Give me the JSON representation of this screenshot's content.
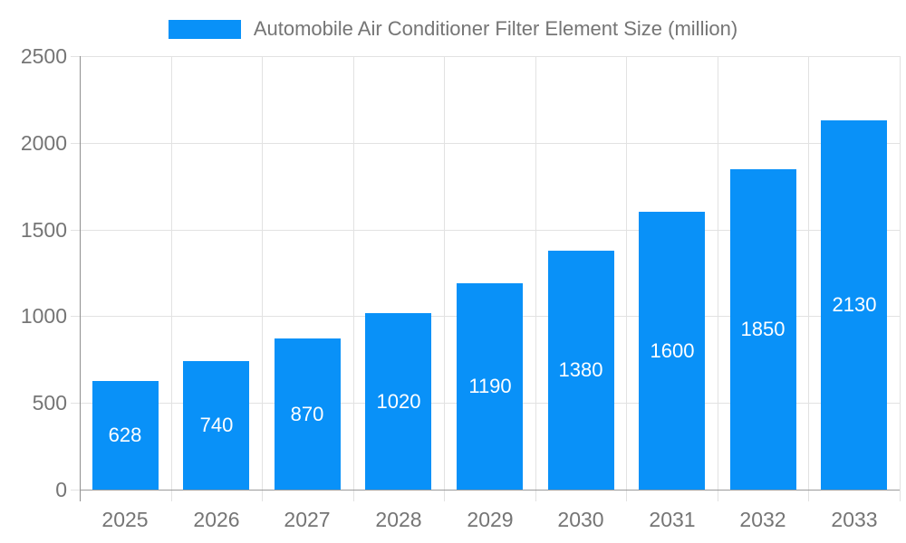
{
  "legend": {
    "label": "Automobile Air Conditioner Filter Element Size (million)"
  },
  "chart_data": {
    "type": "bar",
    "title": "Automobile Air Conditioner Filter Element Size (million)",
    "categories": [
      "2025",
      "2026",
      "2027",
      "2028",
      "2029",
      "2030",
      "2031",
      "2032",
      "2033"
    ],
    "values": [
      628,
      740,
      870,
      1020,
      1190,
      1380,
      1600,
      1850,
      2130
    ],
    "xlabel": "",
    "ylabel": "",
    "ylim": [
      0,
      2500
    ],
    "yticks": [
      0,
      500,
      1000,
      1500,
      2000,
      2500
    ],
    "grid": true,
    "legend_position": "top",
    "bar_color": "#0991f8",
    "bar_label_color": "#ffffff",
    "axis_text_color": "#757575",
    "gridline_color": "#e2e2e2"
  }
}
